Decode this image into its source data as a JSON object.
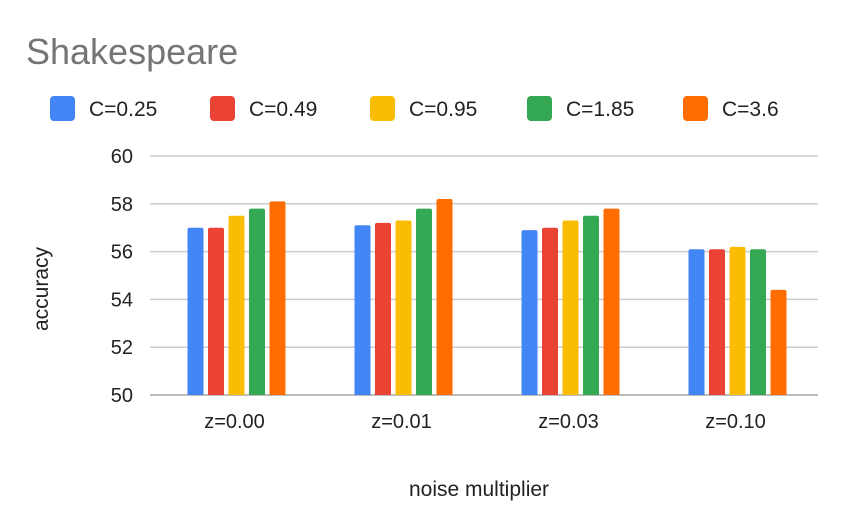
{
  "chart_data": {
    "type": "bar",
    "title": "Shakespeare",
    "xlabel": "noise multiplier",
    "ylabel": "accuracy",
    "categories": [
      "z=0.00",
      "z=0.01",
      "z=0.03",
      "z=0.10"
    ],
    "series": [
      {
        "name": "C=0.25",
        "color": "#4285F4",
        "values": [
          57.0,
          57.1,
          56.9,
          56.1
        ]
      },
      {
        "name": "C=0.49",
        "color": "#EA4335",
        "values": [
          57.0,
          57.2,
          57.0,
          56.1
        ]
      },
      {
        "name": "C=0.95",
        "color": "#FBBC04",
        "values": [
          57.5,
          57.3,
          57.3,
          56.2
        ]
      },
      {
        "name": "C=1.85",
        "color": "#34A853",
        "values": [
          57.8,
          57.8,
          57.5,
          56.1
        ]
      },
      {
        "name": "C=3.6",
        "color": "#FF6D01",
        "values": [
          58.1,
          58.2,
          57.8,
          54.4
        ]
      }
    ],
    "ylim": [
      50,
      60
    ],
    "yticks": [
      50,
      52,
      54,
      56,
      58,
      60
    ],
    "grid": true,
    "legend": "top"
  }
}
